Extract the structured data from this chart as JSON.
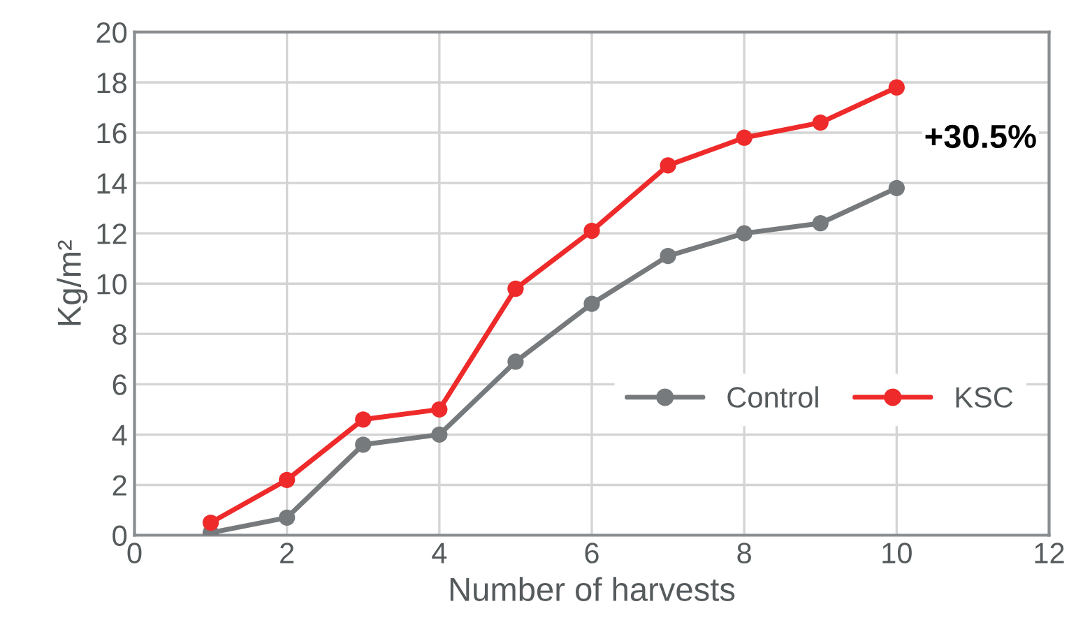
{
  "chart_data": {
    "type": "line",
    "xlabel": "Number of harvests",
    "ylabel": "Kg/m²",
    "x": [
      1,
      2,
      3,
      4,
      5,
      6,
      7,
      8,
      9,
      10
    ],
    "series": [
      {
        "name": "Control",
        "color": "#767a7c",
        "values": [
          0.1,
          0.7,
          3.6,
          4.0,
          6.9,
          9.2,
          11.1,
          12.0,
          12.4,
          13.8
        ]
      },
      {
        "name": "KSC",
        "color": "#ee2a2a",
        "values": [
          0.5,
          2.2,
          4.6,
          5.0,
          9.8,
          12.1,
          14.7,
          15.8,
          16.4,
          17.8
        ]
      }
    ],
    "xlim": [
      0,
      12
    ],
    "xticks": [
      0,
      2,
      4,
      6,
      8,
      10,
      12
    ],
    "ylim": [
      0,
      20
    ],
    "yticks": [
      0,
      2,
      4,
      6,
      8,
      10,
      12,
      14,
      16,
      18,
      20
    ],
    "grid": true,
    "legend": "bottom right",
    "marker": "circle",
    "line_style": "solid",
    "annotations": [
      "+30.5%"
    ]
  }
}
